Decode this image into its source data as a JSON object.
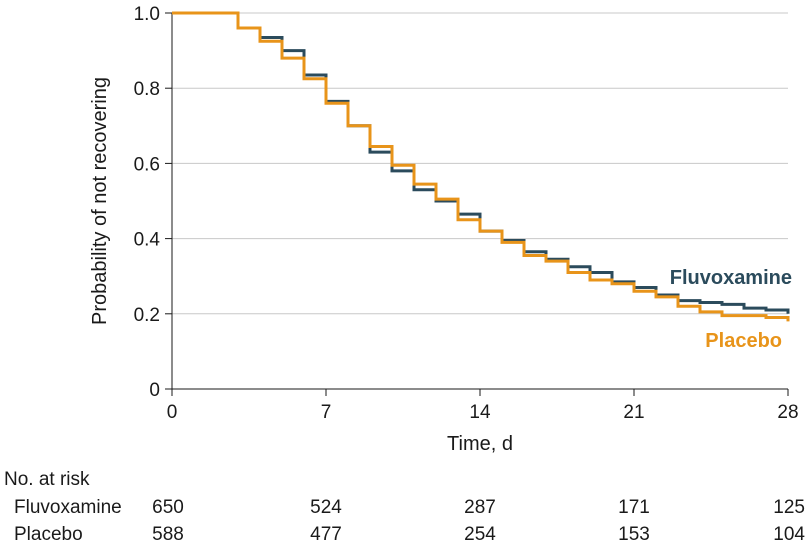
{
  "chart_data": {
    "type": "line",
    "step": true,
    "xlabel": "Time, d",
    "ylabel": "Probability of not recovering",
    "xlim": [
      0,
      28
    ],
    "ylim": [
      0,
      1.0
    ],
    "xticks": [
      "0",
      "7",
      "14",
      "21",
      "28"
    ],
    "yticks": [
      "0",
      "0.2",
      "0.4",
      "0.6",
      "0.8",
      "1.0"
    ],
    "grid": "horizontal",
    "series": [
      {
        "name": "Fluvoxamine",
        "color": "#2b4b5c",
        "x": [
          0,
          3,
          4,
          5,
          6,
          7,
          8,
          9,
          10,
          11,
          12,
          13,
          14,
          15,
          16,
          17,
          18,
          19,
          20,
          21,
          22,
          23,
          24,
          25,
          26,
          27,
          28
        ],
        "y": [
          1.0,
          0.96,
          0.935,
          0.9,
          0.835,
          0.765,
          0.7,
          0.63,
          0.58,
          0.53,
          0.5,
          0.465,
          0.42,
          0.395,
          0.365,
          0.345,
          0.325,
          0.31,
          0.285,
          0.27,
          0.25,
          0.235,
          0.23,
          0.225,
          0.215,
          0.21,
          0.2
        ]
      },
      {
        "name": "Placebo",
        "color": "#e8941a",
        "x": [
          0,
          3,
          4,
          5,
          6,
          7,
          8,
          9,
          10,
          11,
          12,
          13,
          14,
          15,
          16,
          17,
          18,
          19,
          20,
          21,
          22,
          23,
          24,
          25,
          26,
          27,
          28
        ],
        "y": [
          1.0,
          0.96,
          0.925,
          0.88,
          0.825,
          0.76,
          0.7,
          0.645,
          0.595,
          0.545,
          0.505,
          0.45,
          0.42,
          0.39,
          0.355,
          0.34,
          0.31,
          0.29,
          0.28,
          0.26,
          0.245,
          0.22,
          0.205,
          0.195,
          0.195,
          0.19,
          0.18
        ]
      }
    ],
    "annotations": [
      "Fluvoxamine",
      "Placebo"
    ],
    "risk_table": {
      "title": "No. at risk",
      "times": [
        0,
        7,
        14,
        21,
        28
      ],
      "rows": [
        {
          "label": "Fluvoxamine",
          "values": [
            "650",
            "524",
            "287",
            "171",
            "125"
          ]
        },
        {
          "label": "Placebo",
          "values": [
            "588",
            "477",
            "254",
            "153",
            "104"
          ]
        }
      ]
    }
  }
}
